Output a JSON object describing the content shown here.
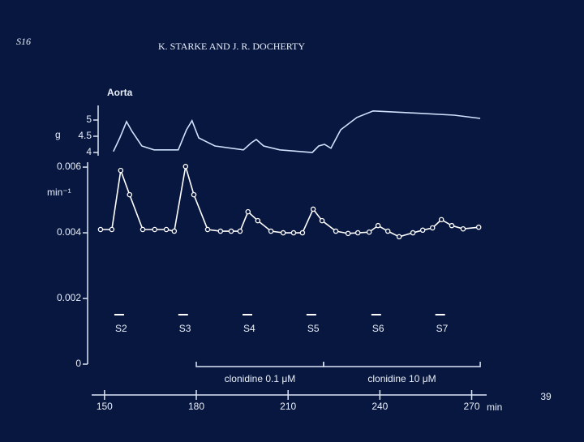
{
  "page": {
    "label": "S16",
    "authors": "K. STARKE AND J. R. DOCHERTY",
    "page_number": "39"
  },
  "chart_data": [
    {
      "type": "line",
      "title": "Aorta",
      "y_label": "g",
      "color": "#cfe2ff",
      "x": [
        152.9,
        155.0,
        157.2,
        159.0,
        162.2,
        166.2,
        174.1,
        176.8,
        178.6,
        180.8,
        186.1,
        195.4,
        198.0,
        199.6,
        202.0,
        207.3,
        217.9,
        220.0,
        221.9,
        224.0,
        227.2,
        232.5,
        237.8,
        248.4,
        264.3,
        272.8
      ],
      "values": [
        4.03,
        4.45,
        4.95,
        4.65,
        4.2,
        4.08,
        4.08,
        4.7,
        4.98,
        4.45,
        4.2,
        4.08,
        4.3,
        4.4,
        4.2,
        4.08,
        4.0,
        4.2,
        4.25,
        4.13,
        4.7,
        5.08,
        5.28,
        5.23,
        5.15,
        5.05
      ],
      "xlim": [
        145.8,
        274.9
      ],
      "ylim": [
        3.9,
        5.45
      ],
      "yticks": [
        4,
        4.5,
        5
      ]
    },
    {
      "type": "line",
      "y_label": "min⁻¹",
      "x_label": "min",
      "color": "#ffffff",
      "markers": true,
      "x": [
        148.7,
        152.4,
        155.3,
        158.2,
        162.5,
        166.4,
        170.2,
        172.8,
        176.5,
        179.2,
        183.7,
        187.9,
        191.4,
        194.3,
        196.9,
        200.1,
        204.4,
        208.4,
        211.8,
        214.7,
        218.2,
        221.1,
        225.6,
        229.6,
        232.8,
        236.5,
        239.4,
        242.6,
        246.3,
        250.8,
        254.0,
        257.2,
        260.1,
        263.5,
        267.2,
        272.3
      ],
      "values": [
        0.0041,
        0.0041,
        0.0059,
        0.00516,
        0.0041,
        0.0041,
        0.0041,
        0.00405,
        0.00602,
        0.00516,
        0.0041,
        0.00405,
        0.00405,
        0.00405,
        0.00464,
        0.00437,
        0.00405,
        0.004,
        0.004,
        0.004,
        0.00472,
        0.00437,
        0.00405,
        0.00398,
        0.004,
        0.00402,
        0.00422,
        0.00405,
        0.00388,
        0.004,
        0.00408,
        0.00415,
        0.0044,
        0.00422,
        0.00412,
        0.00417
      ],
      "xlim": [
        145.8,
        274.9
      ],
      "ylim": [
        0,
        0.00615
      ],
      "yticks": [
        0,
        0.002,
        0.004,
        0.006
      ],
      "xticks": [
        150,
        180,
        210,
        240,
        270
      ],
      "periods": [
        {
          "label": "S2",
          "x": 154.8
        },
        {
          "label": "S3",
          "x": 175.7
        },
        {
          "label": "S4",
          "x": 196.7
        },
        {
          "label": "S5",
          "x": 217.6
        },
        {
          "label": "S6",
          "x": 238.8
        },
        {
          "label": "S7",
          "x": 259.7
        }
      ],
      "annotations": [
        {
          "text": "clonidine 0.1 μM",
          "x_start": 180,
          "x_end": 221.6
        },
        {
          "text": "clonidine 10 μM",
          "x_start": 221.6,
          "x_end": 272.8
        }
      ]
    }
  ]
}
